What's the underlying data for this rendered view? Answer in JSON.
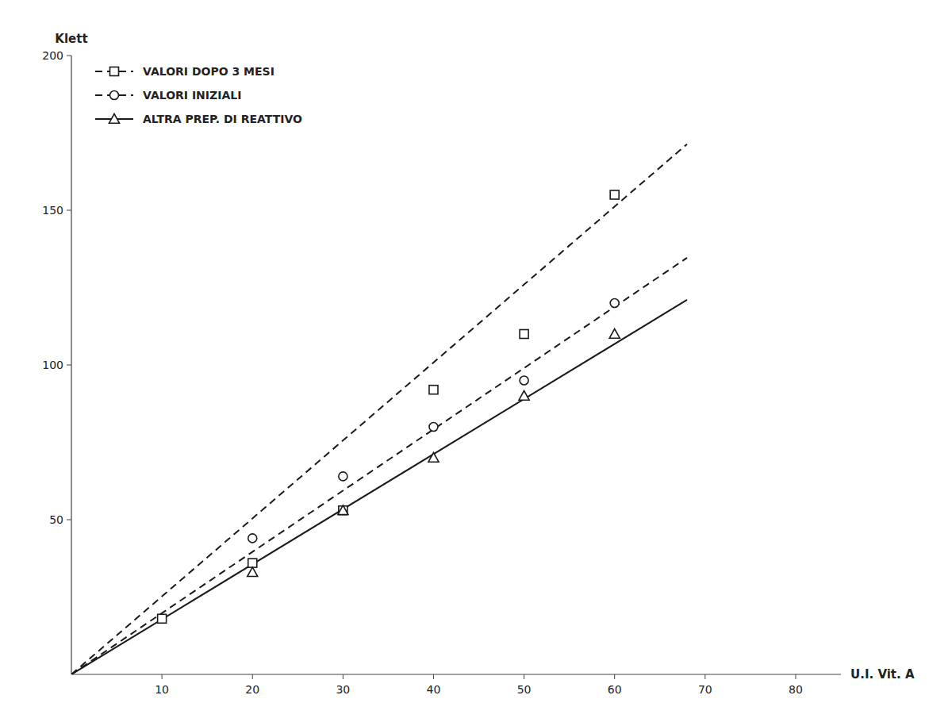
{
  "chart_data": {
    "type": "scatter",
    "x_label": "U.I. Vit. A",
    "y_label": "Klett",
    "xlim": [
      0,
      85
    ],
    "ylim": [
      0,
      200
    ],
    "xticks": [
      10,
      20,
      30,
      40,
      50,
      60,
      70,
      80
    ],
    "yticks": [
      50,
      100,
      150,
      200
    ],
    "grid": false,
    "legend": "upper-left",
    "series": [
      {
        "name": "VALORI DOPO 3 MESI",
        "type": "scatter",
        "marker": "square",
        "line_style": "dashed",
        "color": "#1a1a1a",
        "x": [
          10,
          20,
          30,
          40,
          50,
          60
        ],
        "values": [
          18,
          36,
          53,
          92,
          110,
          155
        ]
      },
      {
        "name": "VALORI INIZIALI",
        "type": "scatter",
        "marker": "circle",
        "line_style": "dashed",
        "color": "#1a1a1a",
        "x": [
          20,
          30,
          40,
          50,
          60
        ],
        "values": [
          44,
          64,
          80,
          95,
          120
        ]
      },
      {
        "name": "ALTRA PREP. DI REATTIVO",
        "type": "scatter",
        "marker": "triangle",
        "line_style": "solid",
        "color": "#1a1a1a",
        "x": [
          20,
          30,
          40,
          50,
          60
        ],
        "values": [
          33,
          53,
          70,
          90,
          110
        ]
      },
      {
        "type": "line",
        "line_style": "dashed",
        "color": "#1a1a1a",
        "x": [
          0,
          68
        ],
        "values": [
          0,
          171.36
        ]
      },
      {
        "type": "line",
        "line_style": "dashed",
        "color": "#1a1a1a",
        "x": [
          0,
          68
        ],
        "values": [
          0,
          134.64
        ]
      },
      {
        "type": "line",
        "line_style": "solid",
        "color": "#1a1a1a",
        "x": [
          0,
          68
        ],
        "values": [
          0,
          121.04
        ]
      }
    ]
  }
}
